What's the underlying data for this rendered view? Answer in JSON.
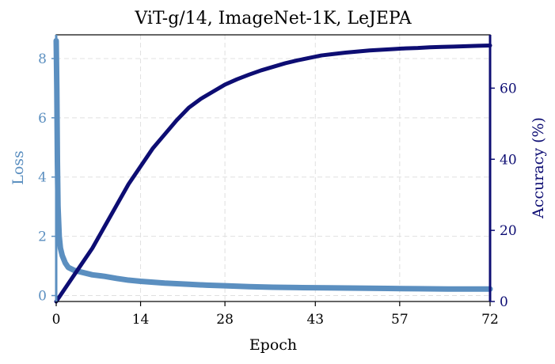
{
  "chart_data": {
    "type": "line",
    "title": "ViT-g/14, ImageNet-1K, LeJEPA",
    "xlabel": "Epoch",
    "ylabel_left": "Loss",
    "ylabel_right": "Accuracy (%)",
    "xlim": [
      0,
      72
    ],
    "ylim_left": [
      -0.2,
      8.8
    ],
    "ylim_right": [
      0,
      75
    ],
    "x_ticks": [
      0,
      14,
      28,
      43,
      57,
      72
    ],
    "y_ticks_left": [
      0,
      2,
      4,
      6,
      8
    ],
    "y_ticks_right": [
      0,
      20,
      40,
      60
    ],
    "grid": true,
    "colors": {
      "loss": "#5b8fc0",
      "accuracy": "#0d0d73",
      "grid": "#e0e0e0"
    },
    "series": [
      {
        "axis": "left",
        "color": "#5b8fc0",
        "x": [
          0,
          0.1,
          0.2,
          0.3,
          0.5,
          0.7,
          1,
          1.5,
          2,
          3,
          4,
          5,
          6,
          8,
          10,
          12,
          14,
          16,
          18,
          20,
          22,
          25,
          28,
          32,
          36,
          40,
          45,
          50,
          55,
          60,
          65,
          70,
          72
        ],
        "values": [
          8.6,
          7.0,
          4.5,
          3.0,
          2.0,
          1.6,
          1.35,
          1.1,
          0.95,
          0.85,
          0.8,
          0.75,
          0.7,
          0.65,
          0.58,
          0.52,
          0.48,
          0.45,
          0.42,
          0.4,
          0.38,
          0.35,
          0.33,
          0.3,
          0.28,
          0.27,
          0.26,
          0.25,
          0.24,
          0.23,
          0.22,
          0.22,
          0.22
        ]
      },
      {
        "axis": "right",
        "color": "#0d0d73",
        "x": [
          0,
          2,
          4,
          6,
          8,
          10,
          12,
          14,
          16,
          18,
          20,
          22,
          24,
          26,
          28,
          30,
          32,
          34,
          36,
          38,
          40,
          42,
          44,
          46,
          48,
          50,
          52,
          54,
          56,
          58,
          60,
          62,
          64,
          66,
          68,
          70,
          72
        ],
        "values": [
          0,
          5,
          10,
          15,
          21,
          27,
          33,
          38,
          43,
          47,
          51,
          54.5,
          57,
          59,
          61,
          62.5,
          63.8,
          65,
          66,
          67,
          67.8,
          68.5,
          69.2,
          69.6,
          70,
          70.3,
          70.6,
          70.8,
          71,
          71.2,
          71.3,
          71.5,
          71.6,
          71.7,
          71.8,
          71.9,
          72
        ]
      }
    ]
  }
}
